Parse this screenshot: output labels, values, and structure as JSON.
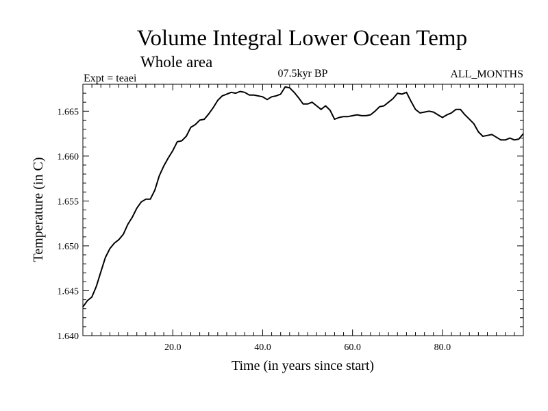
{
  "chart_data": {
    "type": "line",
    "title": "Volume Integral Lower Ocean Temp",
    "subtitle": "Whole area",
    "expt_label": "Expt = teaei",
    "period_label": "07.5kyr BP",
    "months_label": "ALL_MONTHS",
    "xlabel": "Time (in years since start)",
    "ylabel": "Temperature (in C)",
    "xlim": [
      0,
      98
    ],
    "ylim": [
      1.64,
      1.668
    ],
    "x_ticks": [
      {
        "value": 20,
        "label": "20.0"
      },
      {
        "value": 40,
        "label": "40.0"
      },
      {
        "value": 60,
        "label": "60.0"
      },
      {
        "value": 80,
        "label": "80.0"
      }
    ],
    "y_ticks": [
      {
        "value": 1.64,
        "label": "1.640"
      },
      {
        "value": 1.645,
        "label": "1.645"
      },
      {
        "value": 1.65,
        "label": "1.650"
      },
      {
        "value": 1.655,
        "label": "1.655"
      },
      {
        "value": 1.66,
        "label": "1.660"
      },
      {
        "value": 1.665,
        "label": "1.665"
      }
    ],
    "series": [
      {
        "name": "temperature",
        "color": "#000000",
        "x": [
          0,
          1,
          2,
          3,
          4,
          5,
          6,
          7,
          8,
          9,
          10,
          11,
          12,
          13,
          14,
          15,
          16,
          17,
          18,
          19,
          20,
          21,
          22,
          23,
          24,
          25,
          26,
          27,
          28,
          29,
          30,
          31,
          32,
          33,
          34,
          35,
          36,
          37,
          38,
          39,
          40,
          41,
          42,
          43,
          44,
          45,
          46,
          47,
          48,
          49,
          50,
          51,
          52,
          53,
          54,
          55,
          56,
          57,
          58,
          59,
          60,
          61,
          62,
          63,
          64,
          65,
          66,
          67,
          68,
          69,
          70,
          71,
          72,
          73,
          74,
          75,
          76,
          77,
          78,
          79,
          80,
          81,
          82,
          83,
          84,
          85,
          86,
          87,
          88,
          89,
          90,
          91,
          92,
          93,
          94,
          95,
          96,
          97,
          98
        ],
        "values": [
          1.6432,
          1.6439,
          1.6443,
          1.6455,
          1.6471,
          1.6487,
          1.6497,
          1.6503,
          1.6507,
          1.6513,
          1.6524,
          1.6532,
          1.6542,
          1.6549,
          1.6552,
          1.6552,
          1.6562,
          1.6578,
          1.6589,
          1.6598,
          1.6606,
          1.6616,
          1.6617,
          1.6622,
          1.6632,
          1.6635,
          1.664,
          1.6641,
          1.6647,
          1.6654,
          1.6662,
          1.6667,
          1.6669,
          1.6671,
          1.667,
          1.6672,
          1.6671,
          1.6668,
          1.6668,
          1.6667,
          1.6666,
          1.6663,
          1.6666,
          1.6667,
          1.6669,
          1.6677,
          1.6676,
          1.6671,
          1.6665,
          1.6658,
          1.6658,
          1.666,
          1.6656,
          1.6652,
          1.6656,
          1.6651,
          1.6641,
          1.6643,
          1.6644,
          1.6644,
          1.6645,
          1.6646,
          1.6645,
          1.6645,
          1.6646,
          1.665,
          1.6655,
          1.6656,
          1.666,
          1.6664,
          1.667,
          1.6669,
          1.6671,
          1.6661,
          1.6652,
          1.6648,
          1.6649,
          1.665,
          1.6649,
          1.6646,
          1.6643,
          1.6646,
          1.6648,
          1.6652,
          1.6652,
          1.6646,
          1.6641,
          1.6636,
          1.6627,
          1.6622,
          1.6623,
          1.6624,
          1.6621,
          1.6618,
          1.6618,
          1.662,
          1.6618,
          1.6619,
          1.6625
        ]
      }
    ]
  }
}
